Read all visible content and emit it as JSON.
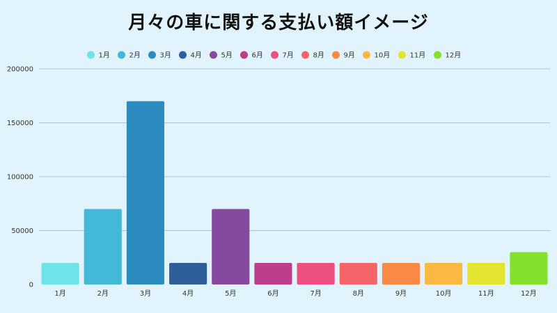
{
  "chart_data": {
    "type": "bar",
    "title": "月々の車に関する支払い額イメージ",
    "xlabel": "",
    "ylabel": "",
    "categories": [
      "1月",
      "2月",
      "3月",
      "4月",
      "5月",
      "6月",
      "7月",
      "8月",
      "9月",
      "10月",
      "11月",
      "12月"
    ],
    "values": [
      20000,
      70000,
      170000,
      20000,
      70000,
      20000,
      20000,
      20000,
      20000,
      20000,
      20000,
      30000
    ],
    "colors": [
      "#6ee4ea",
      "#43b8d8",
      "#2c8cbf",
      "#2f5f9a",
      "#854a9e",
      "#bb3d8b",
      "#ed4f7e",
      "#f56468",
      "#f98a46",
      "#fbb843",
      "#e2e42f",
      "#83e12c"
    ],
    "ylim": [
      0,
      200000
    ],
    "yticks": [
      0,
      50000,
      100000,
      150000,
      200000
    ],
    "grid": true,
    "legend_position": "top"
  }
}
